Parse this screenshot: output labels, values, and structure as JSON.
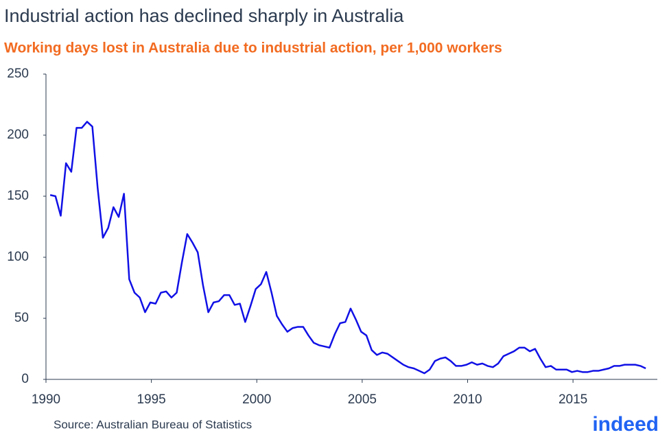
{
  "chart_data": {
    "type": "line",
    "title": "Industrial action has declined sharply in Australia",
    "subtitle": "Working days lost in Australia due to industrial action, per 1,000 workers",
    "source": "Source: Australian Bureau of Statistics",
    "x": [
      1990.2,
      1990.45,
      1990.7,
      1990.95,
      1991.2,
      1991.45,
      1991.7,
      1991.95,
      1992.2,
      1992.45,
      1992.7,
      1992.95,
      1993.2,
      1993.45,
      1993.7,
      1993.95,
      1994.2,
      1994.45,
      1994.7,
      1994.95,
      1995.2,
      1995.45,
      1995.7,
      1995.95,
      1996.2,
      1996.45,
      1996.7,
      1996.95,
      1997.2,
      1997.45,
      1997.7,
      1997.95,
      1998.2,
      1998.45,
      1998.7,
      1998.95,
      1999.2,
      1999.45,
      1999.7,
      1999.95,
      2000.2,
      2000.45,
      2000.7,
      2000.95,
      2001.2,
      2001.45,
      2001.7,
      2001.95,
      2002.2,
      2002.45,
      2002.7,
      2002.95,
      2003.2,
      2003.45,
      2003.7,
      2003.95,
      2004.2,
      2004.45,
      2004.7,
      2004.95,
      2005.2,
      2005.45,
      2005.7,
      2005.95,
      2006.2,
      2006.45,
      2006.7,
      2006.95,
      2007.2,
      2007.45,
      2007.7,
      2007.95,
      2008.2,
      2008.45,
      2008.7,
      2008.95,
      2009.2,
      2009.45,
      2009.7,
      2009.95,
      2010.2,
      2010.45,
      2010.7,
      2010.95,
      2011.2,
      2011.45,
      2011.7,
      2011.95,
      2012.2,
      2012.45,
      2012.7,
      2012.95,
      2013.2,
      2013.45,
      2013.7,
      2013.95,
      2014.2,
      2014.45,
      2014.7,
      2014.95,
      2015.2,
      2015.45,
      2015.7,
      2015.95,
      2016.2,
      2016.45,
      2016.7,
      2016.95,
      2017.2,
      2017.45,
      2017.7,
      2017.95,
      2018.2,
      2018.45
    ],
    "series": [
      {
        "color": "#1010e6",
        "values": [
          151,
          150,
          134,
          177,
          170,
          206,
          206,
          211,
          207,
          157,
          116,
          124,
          141,
          133,
          152,
          82,
          71,
          67,
          55,
          63,
          62,
          71,
          72,
          67,
          71,
          96,
          119,
          112,
          104,
          77,
          55,
          63,
          64,
          69,
          69,
          61,
          62,
          47,
          60,
          74,
          78,
          88,
          71,
          52,
          45,
          39,
          42,
          43,
          43,
          36,
          30,
          28,
          27,
          26,
          37,
          46,
          47,
          58,
          49,
          39,
          36,
          24,
          20,
          22,
          21,
          18,
          15,
          12,
          10,
          9,
          7,
          5,
          8,
          15,
          17,
          18,
          15,
          11,
          11,
          12,
          14,
          12,
          13,
          11,
          10,
          13,
          19,
          21,
          23,
          26,
          26,
          23,
          25,
          17,
          10,
          11,
          8,
          8,
          8,
          6,
          7,
          6,
          6,
          7,
          7,
          8,
          9,
          11,
          11,
          12,
          12,
          12,
          11,
          9
        ]
      }
    ],
    "xlim": [
      1990,
      2019
    ],
    "xticks": [
      1990,
      1995,
      2000,
      2005,
      2010,
      2015
    ],
    "ylim": [
      0,
      250
    ],
    "yticks": [
      0,
      50,
      100,
      150,
      200,
      250
    ],
    "grid": false
  },
  "logo": "indeed"
}
